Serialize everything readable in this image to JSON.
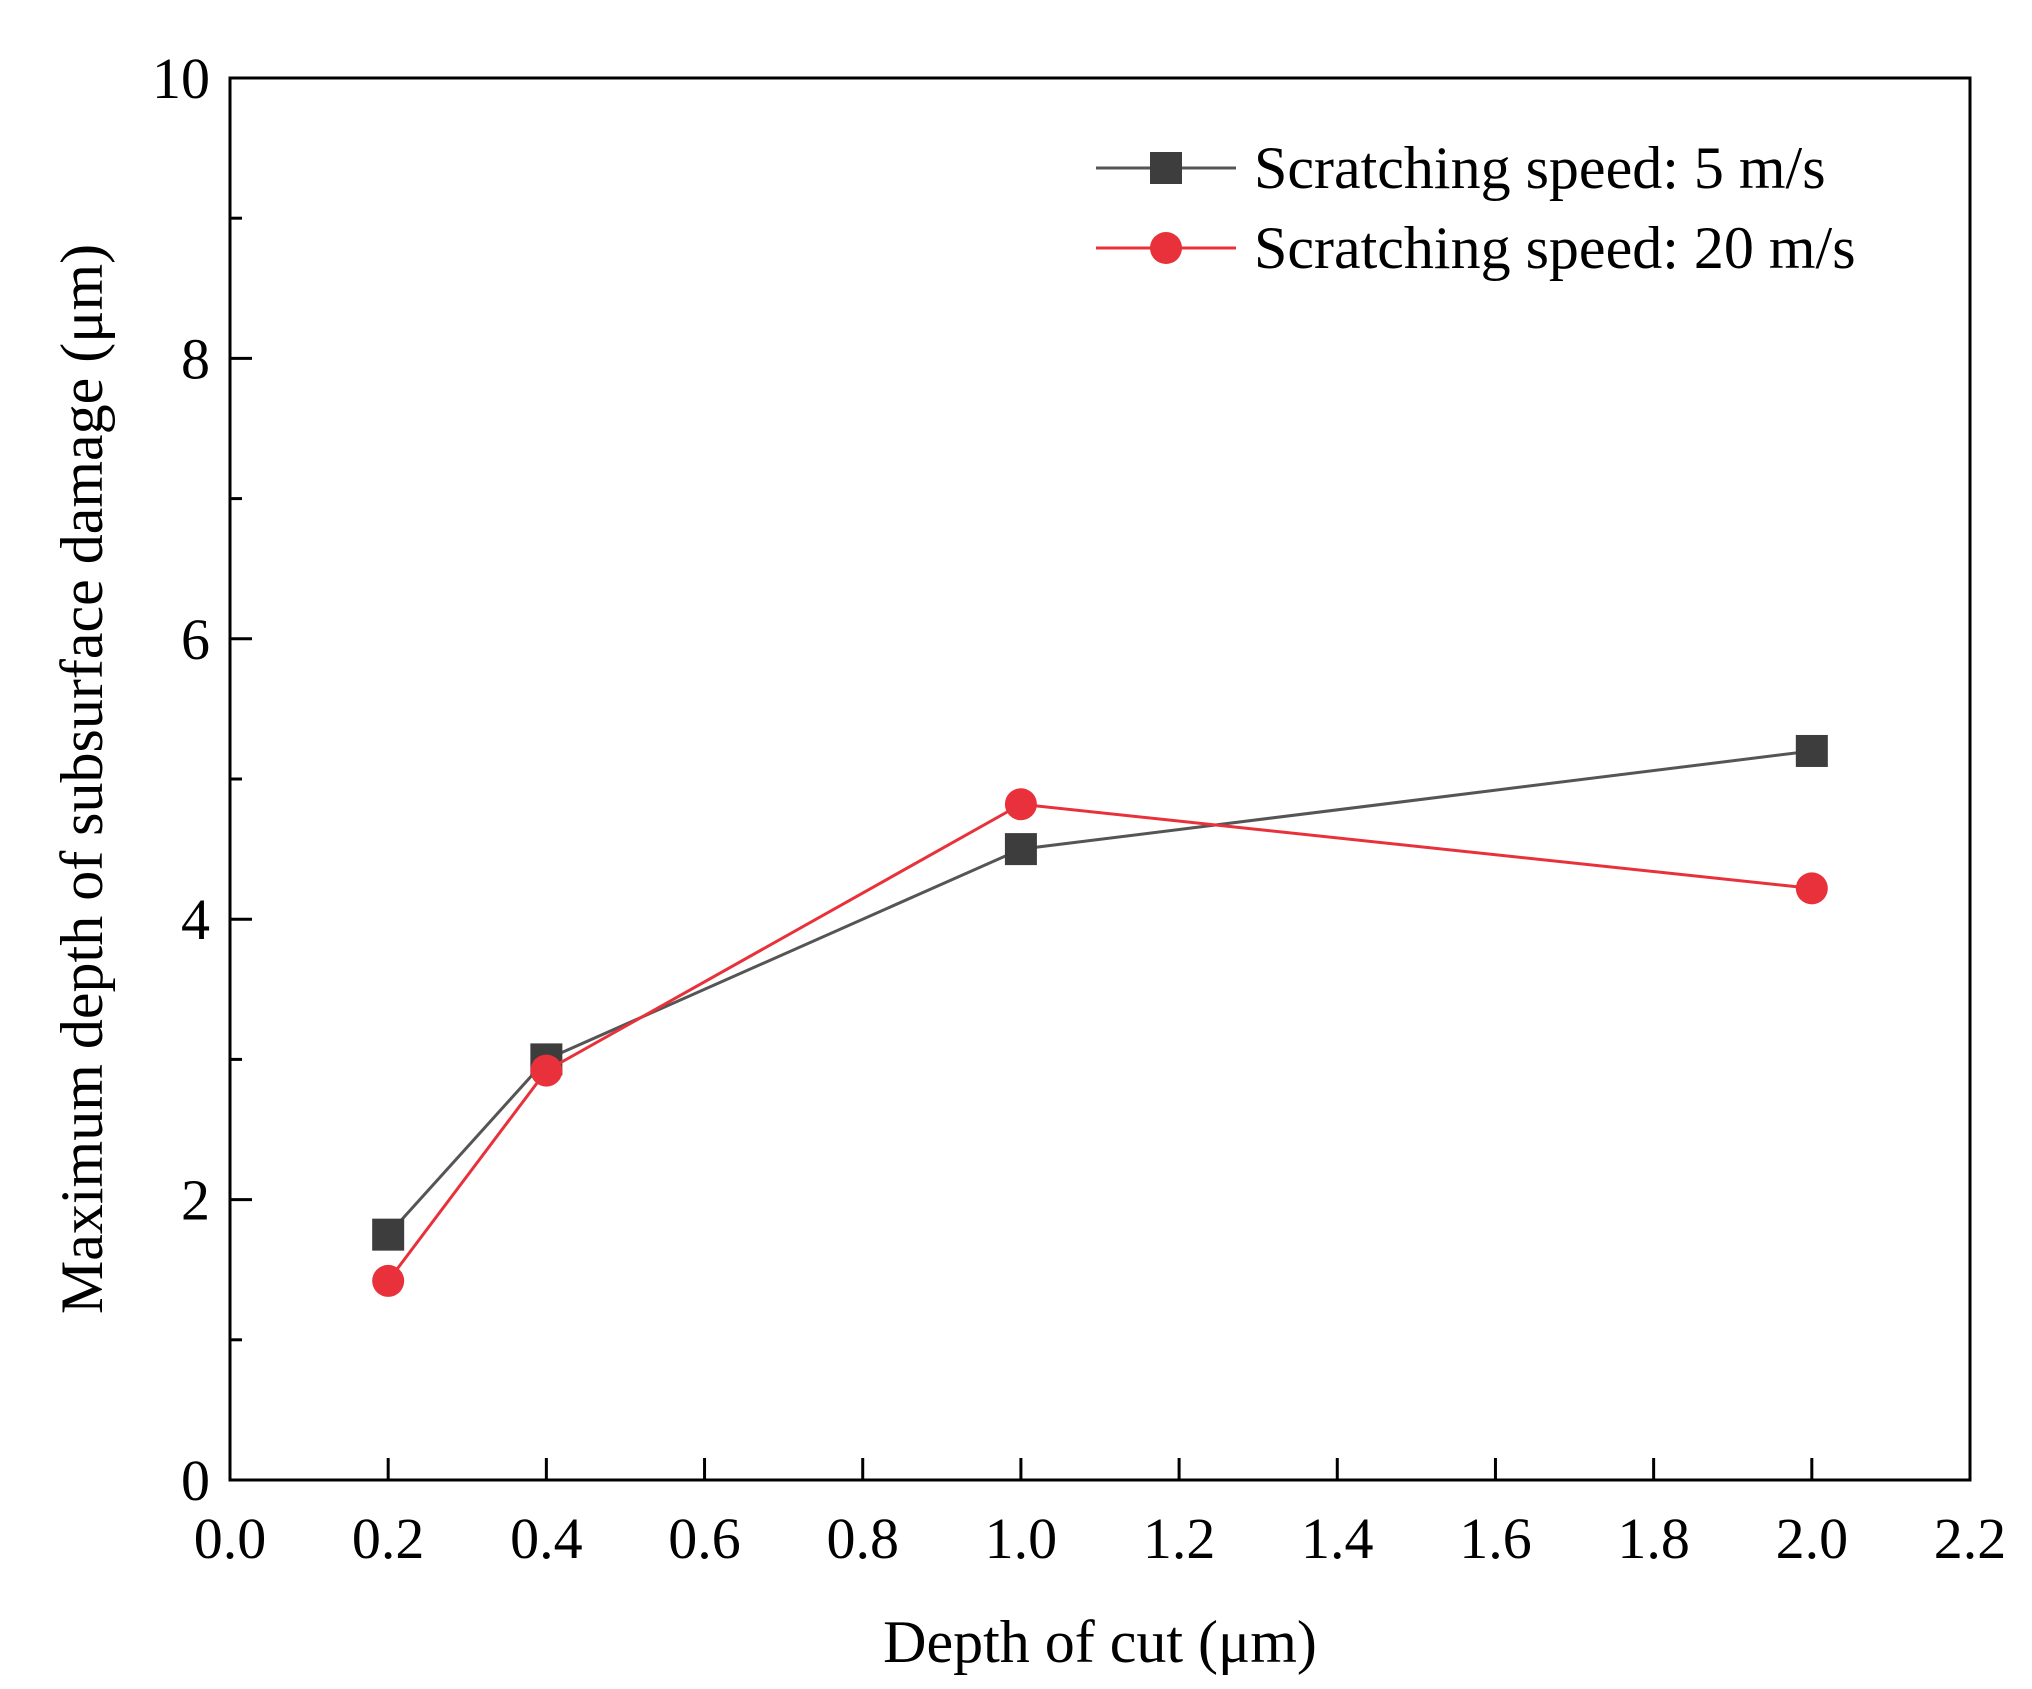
{
  "chart_data": {
    "type": "line",
    "title": "",
    "xlabel": "Depth of cut (μm)",
    "ylabel": "Maximum depth of subsurface damage (μm)",
    "xlim": [
      0.0,
      2.2
    ],
    "ylim": [
      0,
      10
    ],
    "x_ticks": [
      0.0,
      0.2,
      0.4,
      0.6,
      0.8,
      1.0,
      1.2,
      1.4,
      1.6,
      1.8,
      2.0,
      2.2
    ],
    "x_tick_labels": [
      "0.0",
      "0.2",
      "0.4",
      "0.6",
      "0.8",
      "1.0",
      "1.2",
      "1.4",
      "1.6",
      "1.8",
      "2.0",
      "2.2"
    ],
    "y_ticks": [
      0,
      2,
      4,
      6,
      8,
      10
    ],
    "y_tick_labels": [
      "0",
      "2",
      "4",
      "6",
      "8",
      "10"
    ],
    "y_minor_ticks": [
      1,
      3,
      5,
      7,
      9
    ],
    "grid": false,
    "legend_position": "top-right",
    "series": [
      {
        "name": "Scratching speed: 5 m/s",
        "marker": "square",
        "color": "#3d3d3d",
        "line_color": "#555555",
        "x": [
          0.2,
          0.4,
          1.0,
          2.0
        ],
        "values": [
          1.75,
          3.0,
          4.5,
          5.2
        ]
      },
      {
        "name": "Scratching speed: 20 m/s",
        "marker": "circle",
        "color": "#e8313a",
        "line_color": "#e8313a",
        "x": [
          0.2,
          0.4,
          1.0,
          2.0
        ],
        "values": [
          1.42,
          2.92,
          4.82,
          4.22
        ]
      }
    ]
  }
}
